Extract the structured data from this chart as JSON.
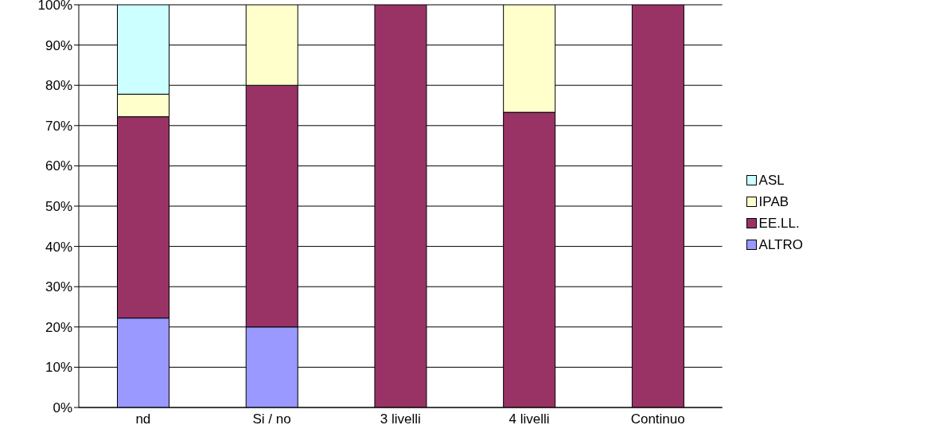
{
  "chart_data": {
    "type": "bar",
    "stacked": true,
    "categories": [
      "nd",
      "Si / no",
      "3 livelli",
      "4 livelli",
      "Continuo"
    ],
    "series": [
      {
        "name": "ALTRO",
        "color": "#9999ff",
        "values": [
          22.2,
          20,
          0,
          0,
          0
        ]
      },
      {
        "name": "EE.LL.",
        "color": "#993366",
        "values": [
          50,
          60,
          100,
          73.3,
          100
        ]
      },
      {
        "name": "IPAB",
        "color": "#ffffcc",
        "values": [
          5.6,
          20,
          0,
          26.7,
          0
        ]
      },
      {
        "name": "ASL",
        "color": "#ccffff",
        "values": [
          22.2,
          0,
          0,
          0,
          0
        ]
      }
    ],
    "ylim": [
      0,
      100
    ],
    "yticks": [
      {
        "value": 0,
        "label": "0%"
      },
      {
        "value": 10,
        "label": "10%"
      },
      {
        "value": 20,
        "label": "20%"
      },
      {
        "value": 30,
        "label": "30%"
      },
      {
        "value": 40,
        "label": "40%"
      },
      {
        "value": 50,
        "label": "50%"
      },
      {
        "value": 60,
        "label": "60%"
      },
      {
        "value": 70,
        "label": "70%"
      },
      {
        "value": 80,
        "label": "80%"
      },
      {
        "value": 90,
        "label": "90%"
      },
      {
        "value": 100,
        "label": "100%"
      }
    ],
    "grid": "y",
    "legend": "right"
  }
}
